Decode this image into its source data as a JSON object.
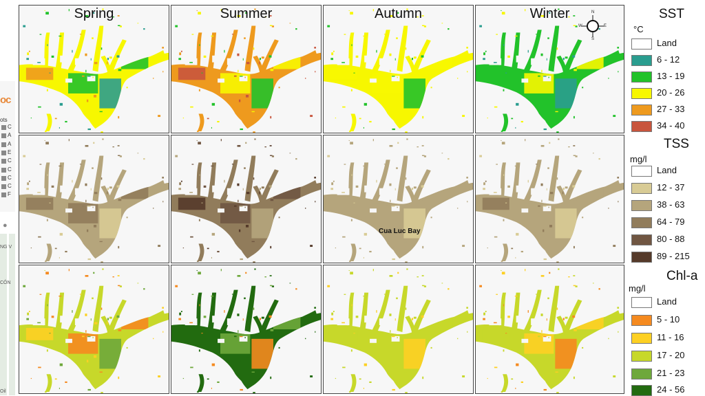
{
  "seasons": [
    "Spring",
    "Summer",
    "Autumn",
    "Winter"
  ],
  "annotation": {
    "bay_label": "Cua Luc Bay"
  },
  "compass": {
    "n": "N",
    "s": "S",
    "e": "E",
    "w": "W"
  },
  "legend": {
    "sst": {
      "title": "SST",
      "unit": "°C",
      "classes": [
        {
          "label": "Land",
          "color": "#ffffff"
        },
        {
          "label": "6 - 12",
          "color": "#2a9d8f"
        },
        {
          "label": "13 - 19",
          "color": "#22c22a"
        },
        {
          "label": "20 - 26",
          "color": "#f7f700"
        },
        {
          "label": "27 - 33",
          "color": "#ee9a1e"
        },
        {
          "label": "34 - 40",
          "color": "#c8553d"
        }
      ]
    },
    "tss": {
      "title": "TSS",
      "unit": "mg/l",
      "classes": [
        {
          "label": "Land",
          "color": "#ffffff"
        },
        {
          "label": "12 - 37",
          "color": "#d8cb95"
        },
        {
          "label": "38 - 63",
          "color": "#b5a57c"
        },
        {
          "label": "64 - 79",
          "color": "#917c5b"
        },
        {
          "label": "80 - 88",
          "color": "#705642"
        },
        {
          "label": "89 - 215",
          "color": "#553a2a"
        }
      ]
    },
    "chla": {
      "title": "Chl-a",
      "unit": "mg/l",
      "classes": [
        {
          "label": "Land",
          "color": "#ffffff"
        },
        {
          "label": "5 - 10",
          "color": "#f58a1f"
        },
        {
          "label": "11 - 16",
          "color": "#fdd023"
        },
        {
          "label": "17 - 20",
          "color": "#c7d82a"
        },
        {
          "label": "21 - 23",
          "color": "#6ea83b"
        },
        {
          "label": "24 - 56",
          "color": "#226b10"
        }
      ]
    }
  },
  "panel_colors": {
    "sst": [
      [
        "#f7f700",
        "#22c22a",
        "#2a9d8f",
        "#ee9a1e"
      ],
      [
        "#ee9a1e",
        "#f7f700",
        "#22c22a",
        "#c8553d"
      ],
      [
        "#f7f700",
        "#f7f700",
        "#22c22a",
        "#f7f700"
      ],
      [
        "#22c22a",
        "#f7f700",
        "#2a9d8f",
        "#22c22a"
      ]
    ],
    "tss": [
      [
        "#b5a57c",
        "#917c5b",
        "#d8cb95",
        "#917c5b"
      ],
      [
        "#917c5b",
        "#705642",
        "#b5a57c",
        "#553a2a"
      ],
      [
        "#b5a57c",
        "#b5a57c",
        "#d8cb95",
        "#b5a57c"
      ],
      [
        "#b5a57c",
        "#b5a57c",
        "#d8cb95",
        "#917c5b"
      ]
    ],
    "chla": [
      [
        "#c7d82a",
        "#f58a1f",
        "#6ea83b",
        "#fdd023"
      ],
      [
        "#226b10",
        "#6ea83b",
        "#f58a1f",
        "#226b10"
      ],
      [
        "#c7d82a",
        "#c7d82a",
        "#fdd023",
        "#c7d82a"
      ],
      [
        "#c7d82a",
        "#fdd023",
        "#f58a1f",
        "#c7d82a"
      ]
    ]
  },
  "sliver": {
    "logo": "oc",
    "tree_label": "ots",
    "items": [
      "C",
      "A",
      "A",
      "E",
      "C",
      "C",
      "C",
      "C",
      "F"
    ],
    "map_labels": [
      "NG V",
      "CÔN",
      "Oil"
    ]
  }
}
